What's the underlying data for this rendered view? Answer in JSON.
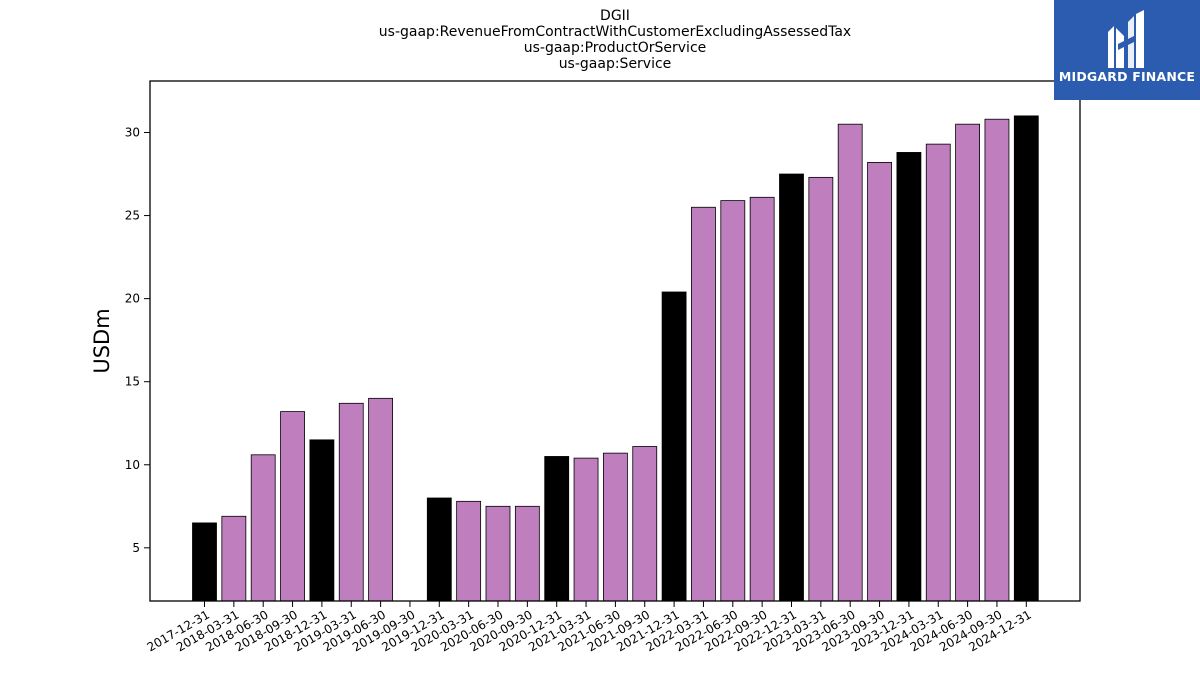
{
  "chart_data": {
    "type": "bar",
    "title": [
      "DGII",
      "us-gaap:RevenueFromContractWithCustomerExcludingAssessedTax",
      "us-gaap:ProductOrService",
      "us-gaap:Service"
    ],
    "xlabel": "",
    "ylabel": "USDm",
    "ylim": [
      1.8,
      33.1
    ],
    "yticks": [
      5,
      10,
      15,
      20,
      25,
      30
    ],
    "grid": false,
    "colors": {
      "annual": "#000000",
      "quarterly": "#bf7fbf",
      "edge": "#000000"
    },
    "categories": [
      "2017-12-31",
      "2018-03-31",
      "2018-06-30",
      "2018-09-30",
      "2018-12-31",
      "2019-03-31",
      "2019-06-30",
      "2019-09-30",
      "2019-12-31",
      "2020-03-31",
      "2020-06-30",
      "2020-09-30",
      "2020-12-31",
      "2021-03-31",
      "2021-06-30",
      "2021-09-30",
      "2021-12-31",
      "2022-03-31",
      "2022-06-30",
      "2022-09-30",
      "2022-12-31",
      "2023-03-31",
      "2023-06-30",
      "2023-09-30",
      "2023-12-31",
      "2024-03-31",
      "2024-06-30",
      "2024-09-30",
      "2024-12-31"
    ],
    "values": [
      6.5,
      6.9,
      10.6,
      13.2,
      11.5,
      13.7,
      14.0,
      null,
      8.0,
      7.8,
      7.5,
      7.5,
      10.5,
      10.4,
      10.7,
      11.1,
      20.4,
      25.5,
      25.9,
      26.1,
      27.5,
      27.3,
      30.5,
      28.2,
      28.8,
      29.3,
      30.5,
      30.8,
      31.0
    ],
    "period": [
      "annual",
      "quarterly",
      "quarterly",
      "quarterly",
      "annual",
      "quarterly",
      "quarterly",
      "quarterly",
      "annual",
      "quarterly",
      "quarterly",
      "quarterly",
      "annual",
      "quarterly",
      "quarterly",
      "quarterly",
      "annual",
      "quarterly",
      "quarterly",
      "quarterly",
      "annual",
      "quarterly",
      "quarterly",
      "quarterly",
      "annual",
      "quarterly",
      "quarterly",
      "quarterly",
      "annual"
    ]
  },
  "logo": {
    "text": "MIDGARD FINANCE",
    "background": "#2b5cb0"
  }
}
